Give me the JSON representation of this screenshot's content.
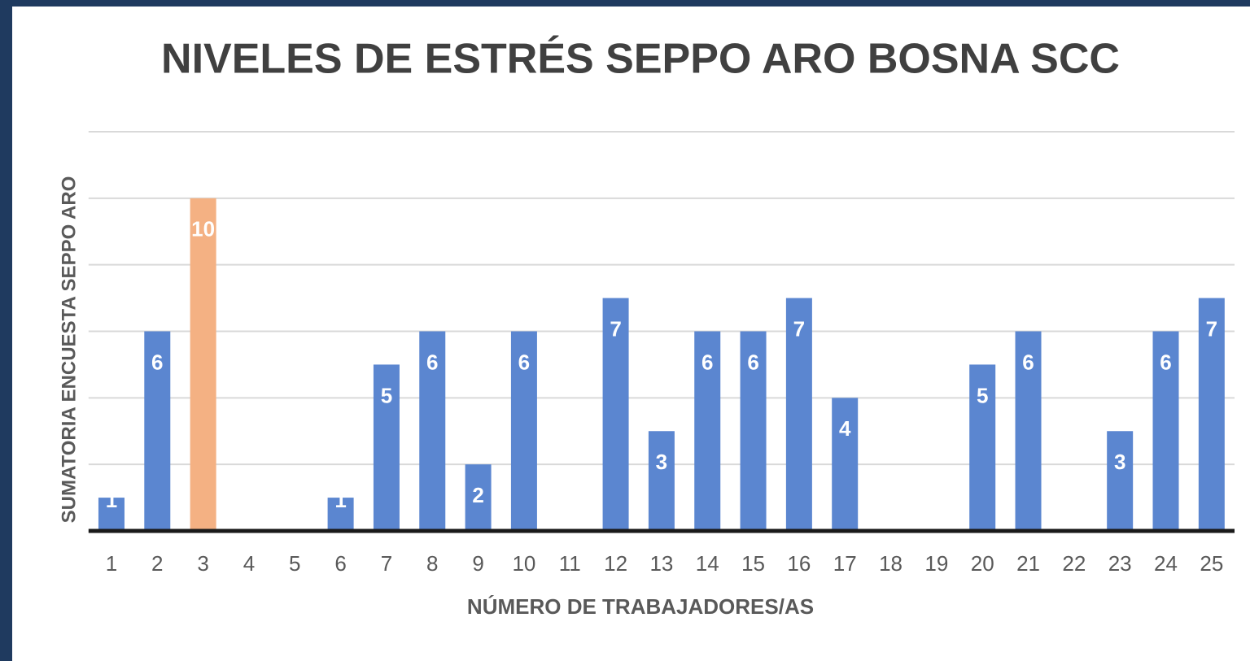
{
  "chart_data": {
    "type": "bar",
    "title": "NIVELES DE ESTRÉS SEPPO ARO BOSNA SCC",
    "x_label": "NÚMERO DE TRABAJADORES/AS",
    "y_label": "SUMATORIA ENCUESTA  SEPPO ARO",
    "categories": [
      "1",
      "2",
      "3",
      "4",
      "5",
      "6",
      "7",
      "8",
      "9",
      "10",
      "11",
      "12",
      "13",
      "14",
      "15",
      "16",
      "17",
      "18",
      "19",
      "20",
      "21",
      "22",
      "23",
      "24",
      "25"
    ],
    "values": [
      1,
      6,
      10,
      null,
      null,
      1,
      5,
      6,
      2,
      6,
      null,
      7,
      3,
      6,
      6,
      7,
      4,
      null,
      null,
      5,
      6,
      null,
      3,
      6,
      7
    ],
    "colors": [
      "#5b86d0",
      "#5b86d0",
      "#f4b183",
      "#5b86d0",
      "#5b86d0",
      "#5b86d0",
      "#5b86d0",
      "#5b86d0",
      "#5b86d0",
      "#5b86d0",
      "#5b86d0",
      "#5b86d0",
      "#5b86d0",
      "#5b86d0",
      "#5b86d0",
      "#5b86d0",
      "#5b86d0",
      "#5b86d0",
      "#5b86d0",
      "#5b86d0",
      "#5b86d0",
      "#5b86d0",
      "#5b86d0",
      "#5b86d0",
      "#5b86d0"
    ],
    "ylim": [
      0,
      12
    ],
    "yticks": [
      0,
      2,
      4,
      6,
      8,
      10,
      12
    ],
    "ytick_labels": false,
    "grid": true
  }
}
